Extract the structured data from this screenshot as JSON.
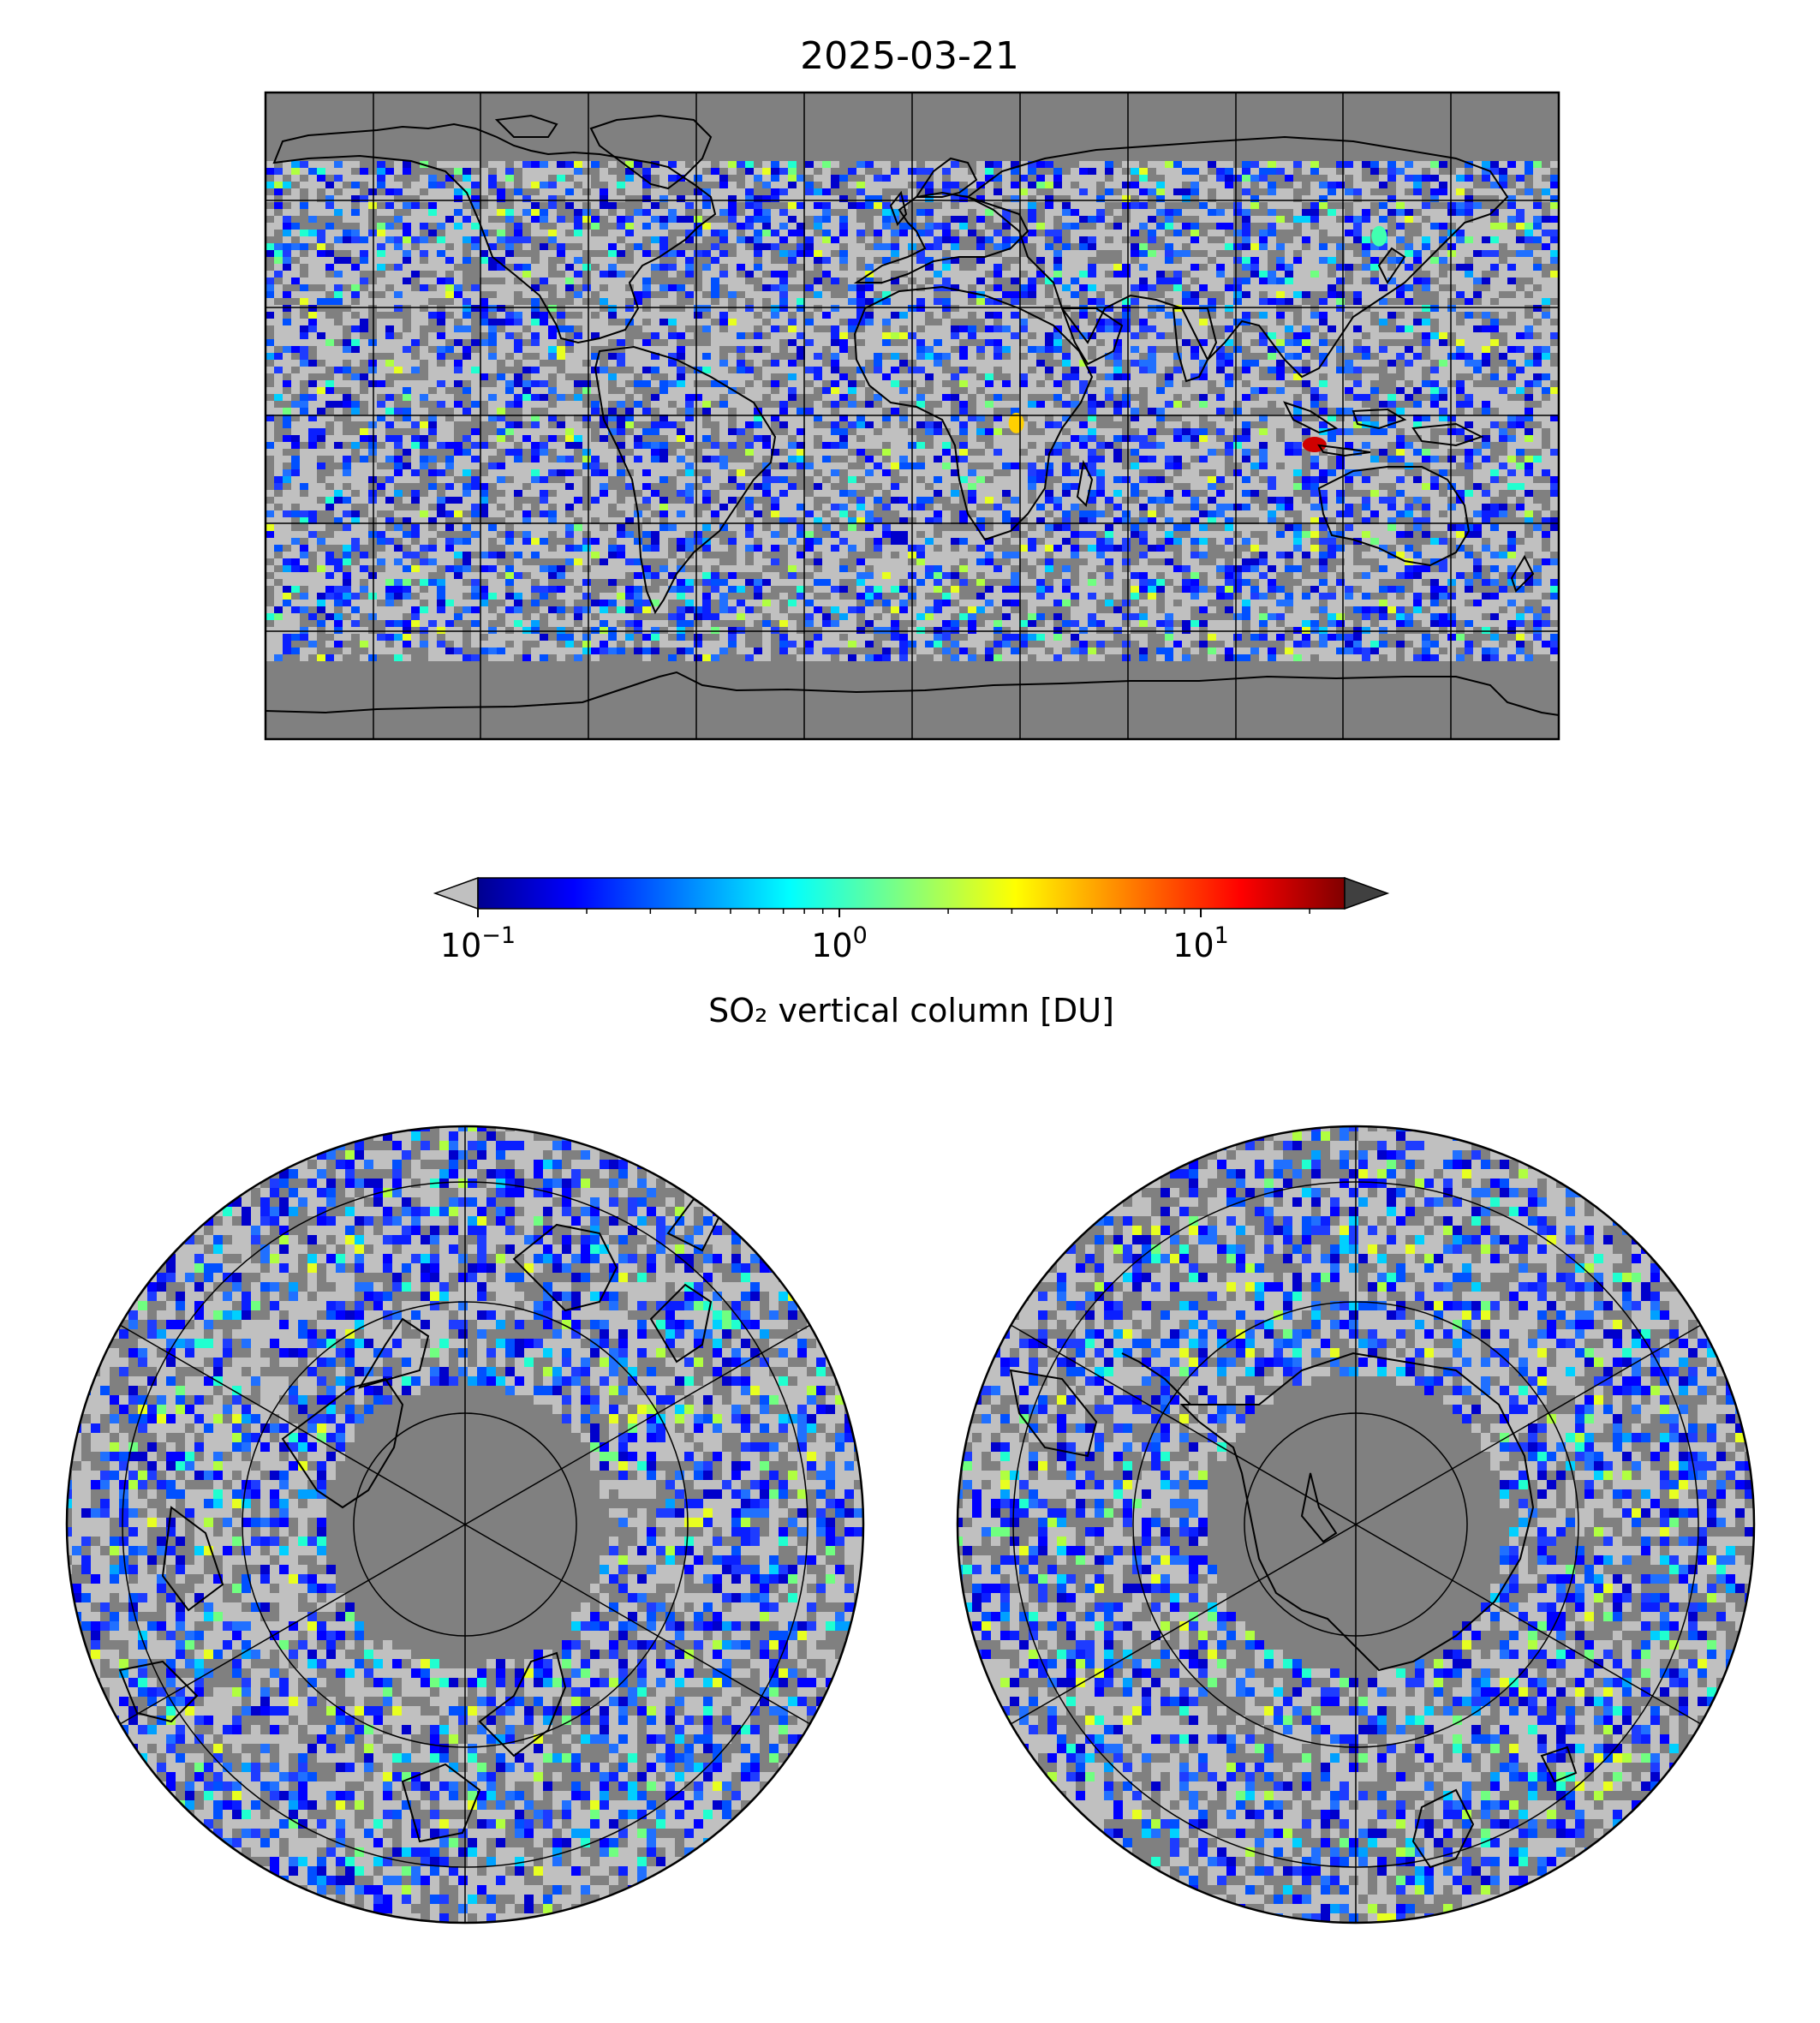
{
  "title": "2025-03-21",
  "colorbar": {
    "label": "SO₂ vertical column [DU]",
    "scale": "log",
    "vmin": 0.1,
    "vmax": 25,
    "extend": "both",
    "under_color": "#c0c0c0",
    "over_color": "#404040",
    "colormap": "jet",
    "ticks": [
      {
        "value": 0.1,
        "base": "10",
        "exp": "−1"
      },
      {
        "value": 1,
        "base": "10",
        "exp": "0"
      },
      {
        "value": 10,
        "base": "10",
        "exp": "1"
      }
    ]
  },
  "colors": {
    "no_data": "#808080",
    "below_range": "#c0c0c0",
    "coastline": "#000000",
    "gridline": "#000000"
  },
  "maps": [
    {
      "name": "global",
      "projection": "PlateCarree",
      "lon_range": [
        -180,
        180
      ],
      "lat_range": [
        -90,
        90
      ],
      "gridlines": {
        "lon_step": 30,
        "lat_step": 30
      }
    },
    {
      "name": "north-polar",
      "projection": "NorthPolarStereo",
      "lat_circles": [
        80,
        60,
        40
      ]
    },
    {
      "name": "south-polar",
      "projection": "SouthPolarStereo",
      "lat_circles": [
        -80,
        -60,
        -40
      ]
    }
  ],
  "hotspots": [
    {
      "region": "Indonesia (Java / Lesser Sunda)",
      "lon": 112,
      "lat": -8,
      "value_du": 20
    },
    {
      "region": "Lake Kivu / East Africa",
      "lon": 29,
      "lat": -2,
      "value_du": 2
    },
    {
      "region": "Kamchatka / NE Asia",
      "lon": 130,
      "lat": 50,
      "value_du": 1
    }
  ]
}
